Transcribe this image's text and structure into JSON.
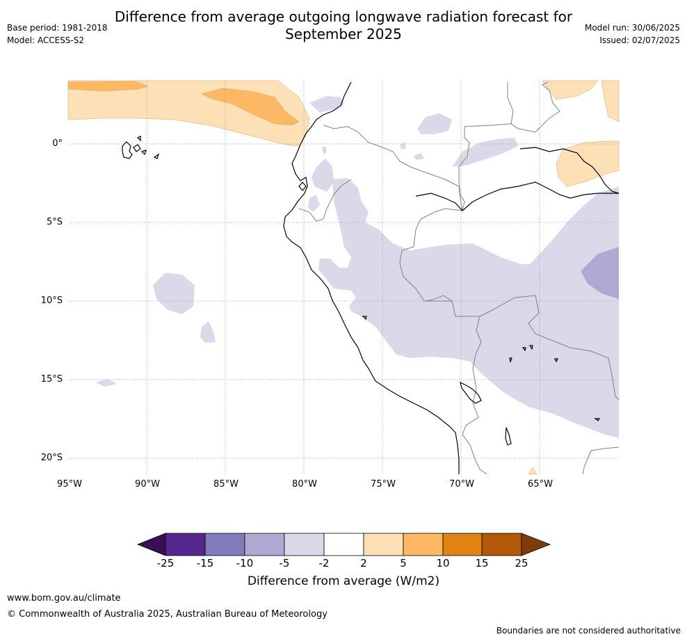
{
  "header": {
    "title_line1": "Difference from average outgoing longwave radiation forecast for",
    "title_line2": "September 2025",
    "base_period": "Base period: 1981-2018",
    "model": "Model: ACCESS-S2",
    "model_run": "Model run: 30/06/2025",
    "issued": "Issued: 02/07/2025"
  },
  "map": {
    "lat_labels": [
      "0°",
      "5°S",
      "10°S",
      "15°S",
      "20°S"
    ],
    "lon_labels": [
      "95°W",
      "90°W",
      "85°W",
      "80°W",
      "75°W",
      "70°W",
      "65°W"
    ],
    "extent": {
      "lon_min": -95,
      "lon_max": -60,
      "lat_min": -21,
      "lat_max": 4
    },
    "ocean_color": "#ffffff",
    "coastline_color": "#000000",
    "border_color": "#808080"
  },
  "colorbar": {
    "title": "Difference from average (W/m2)",
    "ticks": [
      "-25",
      "-15",
      "-10",
      "-5",
      "-2",
      "2",
      "5",
      "10",
      "15",
      "25"
    ],
    "colors": [
      "#3b0f57",
      "#54278f",
      "#807dba",
      "#b1a9d1",
      "#d9d9ea",
      "#ffffff",
      "#fee0b6",
      "#fdb863",
      "#e08214",
      "#b35806",
      "#7f3b08"
    ]
  },
  "footer": {
    "url": "www.bom.gov.au/climate",
    "copyright": "© Commonwealth of Australia 2025, Australian Bureau of Meteorology",
    "disclaimer": "Boundaries are not considered authoritative"
  }
}
